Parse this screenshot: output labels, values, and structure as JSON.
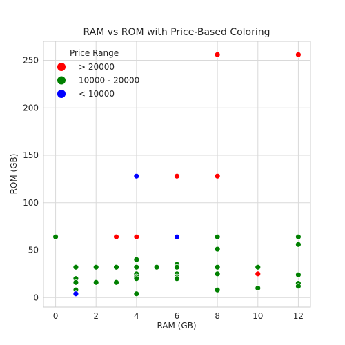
{
  "chart_data": {
    "type": "scatter",
    "title": "RAM vs ROM with Price-Based Coloring",
    "xlabel": "RAM (GB)",
    "ylabel": "ROM (GB)",
    "xlim": [
      -0.6,
      12.6
    ],
    "ylim": [
      -10,
      270
    ],
    "xticks": [
      0,
      2,
      4,
      6,
      8,
      10,
      12
    ],
    "yticks": [
      0,
      50,
      100,
      150,
      200,
      250
    ],
    "grid": true,
    "legend": {
      "title": "Price Range",
      "placement": "top-left"
    },
    "series": [
      {
        "name": "> 20000",
        "color": "#ff0000",
        "points": [
          [
            3,
            64
          ],
          [
            4,
            64
          ],
          [
            6,
            128
          ],
          [
            8,
            128
          ],
          [
            8,
            256
          ],
          [
            10,
            25
          ],
          [
            12,
            256
          ]
        ]
      },
      {
        "name": "10000 - 20000",
        "color": "#008000",
        "points": [
          [
            0,
            64
          ],
          [
            1,
            32
          ],
          [
            1,
            20
          ],
          [
            1,
            16
          ],
          [
            1,
            8
          ],
          [
            2,
            32
          ],
          [
            2,
            16
          ],
          [
            3,
            32
          ],
          [
            3,
            16
          ],
          [
            4,
            40
          ],
          [
            4,
            32
          ],
          [
            4,
            25
          ],
          [
            4,
            22
          ],
          [
            4,
            20
          ],
          [
            4,
            4
          ],
          [
            5,
            32
          ],
          [
            6,
            35
          ],
          [
            6,
            32
          ],
          [
            6,
            25
          ],
          [
            6,
            22
          ],
          [
            6,
            20
          ],
          [
            8,
            64
          ],
          [
            8,
            51
          ],
          [
            8,
            32
          ],
          [
            8,
            25
          ],
          [
            8,
            8
          ],
          [
            10,
            32
          ],
          [
            10,
            10
          ],
          [
            12,
            64
          ],
          [
            12,
            56
          ],
          [
            12,
            24
          ],
          [
            12,
            15
          ],
          [
            12,
            12
          ]
        ]
      },
      {
        "name": "< 10000",
        "color": "#0000ff",
        "points": [
          [
            1,
            4
          ],
          [
            4,
            128
          ],
          [
            6,
            64
          ]
        ]
      }
    ]
  }
}
